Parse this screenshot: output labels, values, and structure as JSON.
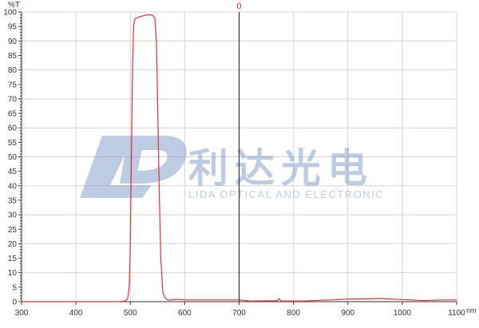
{
  "chart_data": {
    "type": "line",
    "title": "",
    "xlabel": "nm",
    "ylabel": "%T",
    "xlim": [
      300,
      1100
    ],
    "ylim": [
      0,
      100
    ],
    "grid": true,
    "x_ticks": [
      300,
      400,
      500,
      600,
      700,
      800,
      900,
      1000,
      1100
    ],
    "y_ticks": [
      0,
      5,
      10,
      15,
      20,
      25,
      30,
      35,
      40,
      45,
      50,
      55,
      60,
      65,
      70,
      75,
      80,
      85,
      90,
      95,
      100
    ],
    "cursor": {
      "x": 700,
      "label": "0",
      "color": "#333333",
      "label_color": "#e03030"
    },
    "series": [
      {
        "color": "#e0303a",
        "points": [
          [
            300,
            0
          ],
          [
            400,
            0
          ],
          [
            480,
            0
          ],
          [
            490,
            0.2
          ],
          [
            495,
            1
          ],
          [
            498,
            5
          ],
          [
            500,
            20
          ],
          [
            502,
            50
          ],
          [
            504,
            80
          ],
          [
            506,
            95
          ],
          [
            508,
            97.5
          ],
          [
            512,
            98
          ],
          [
            520,
            98.5
          ],
          [
            530,
            99
          ],
          [
            540,
            99
          ],
          [
            545,
            98
          ],
          [
            548,
            90
          ],
          [
            550,
            70
          ],
          [
            553,
            40
          ],
          [
            556,
            15
          ],
          [
            560,
            3
          ],
          [
            565,
            1
          ],
          [
            570,
            0.5
          ],
          [
            585,
            0.8
          ],
          [
            600,
            0.6
          ],
          [
            650,
            0.6
          ],
          [
            700,
            0.6
          ],
          [
            720,
            0.2
          ],
          [
            770,
            0.3
          ],
          [
            773,
            1
          ],
          [
            778,
            0.2
          ],
          [
            820,
            0.2
          ],
          [
            850,
            0.5
          ],
          [
            870,
            0.6
          ],
          [
            900,
            0.9
          ],
          [
            940,
            1
          ],
          [
            960,
            1.1
          ],
          [
            1000,
            0.7
          ],
          [
            1040,
            0.4
          ],
          [
            1080,
            0.6
          ],
          [
            1100,
            0.6
          ]
        ]
      }
    ]
  },
  "watermark": {
    "logo_letters": "LD",
    "chinese": "利达光电",
    "english": "LIDA OPTICAL AND ELECTRONIC"
  }
}
